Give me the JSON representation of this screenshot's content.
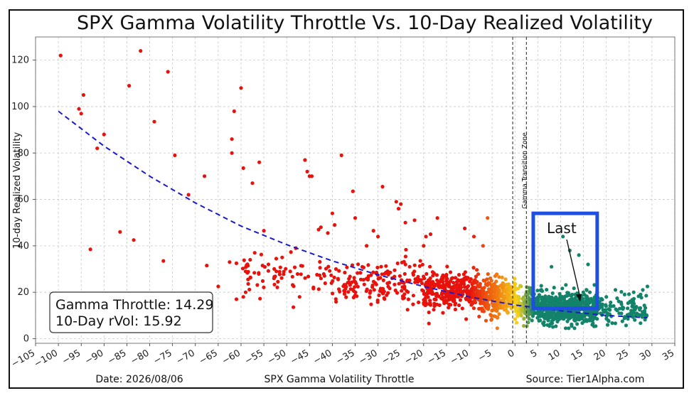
{
  "chart_data": {
    "type": "scatter",
    "title": "SPX Gamma Volatility Throttle Vs. 10-Day Realized Volatility",
    "xlabel": "SPX Gamma Volatility Throttle",
    "ylabel": "10-day Realized Volatility",
    "xlim": [
      -105,
      35
    ],
    "ylim": [
      -2,
      130
    ],
    "x_ticks": [
      -105,
      -100,
      -95,
      -90,
      -85,
      -80,
      -75,
      -70,
      -65,
      -60,
      -55,
      -50,
      -45,
      -40,
      -35,
      -30,
      -25,
      -20,
      -15,
      -10,
      -5,
      0,
      5,
      10,
      15,
      20,
      25,
      30,
      35
    ],
    "y_ticks": [
      0,
      20,
      40,
      60,
      80,
      100,
      120
    ],
    "grid": true,
    "date_label": "Date: 2026/08/06",
    "source_label": "Source: Tier1Alpha.com",
    "zone_label": "Gamma Transition Zone",
    "zone_lines_x": [
      -0.5,
      2.5
    ],
    "stats": {
      "throttle_text": "Gamma Throttle: 14.29",
      "rvol_text": "10-Day rVol: 15.92",
      "throttle_value": 14.29,
      "rvol_value": 15.92
    },
    "last_label": "Last",
    "highlight_box": {
      "x_range": [
        4,
        18
      ],
      "y_range": [
        13,
        54
      ]
    },
    "fit_curve": {
      "style": "dashed",
      "color": "#1a1acc",
      "points": [
        [
          -100,
          98
        ],
        [
          -90,
          83
        ],
        [
          -80,
          70
        ],
        [
          -70,
          58.5
        ],
        [
          -60,
          48.5
        ],
        [
          -50,
          40.5
        ],
        [
          -40,
          33.5
        ],
        [
          -30,
          27.5
        ],
        [
          -20,
          22.5
        ],
        [
          -10,
          18
        ],
        [
          0,
          14.5
        ],
        [
          10,
          12
        ],
        [
          20,
          10
        ],
        [
          29,
          9
        ]
      ]
    },
    "color_scale": {
      "red": "#e8120c",
      "orange": "#f07a10",
      "yellow": "#f5d21c",
      "green": "#13836a"
    },
    "outliers": [
      [
        -99.5,
        122
      ],
      [
        -94.5,
        105
      ],
      [
        -95.5,
        99
      ],
      [
        -95,
        97
      ],
      [
        -93,
        38.5
      ],
      [
        -90,
        88
      ],
      [
        -91.5,
        82
      ],
      [
        -86.5,
        46
      ],
      [
        -84.5,
        109
      ],
      [
        -83.5,
        42.5
      ],
      [
        -82,
        124
      ],
      [
        -79,
        93.5
      ],
      [
        -77,
        33.5
      ],
      [
        -76,
        115
      ],
      [
        -74.5,
        79
      ],
      [
        -71.5,
        62
      ],
      [
        -68,
        70
      ],
      [
        -67.5,
        31.5
      ],
      [
        -65,
        22.5
      ],
      [
        -62.5,
        33
      ],
      [
        -62,
        86
      ],
      [
        -61.5,
        98
      ],
      [
        -62,
        80
      ],
      [
        -61,
        17
      ],
      [
        -61,
        32.5
      ],
      [
        -60,
        108
      ],
      [
        -59.5,
        73.5
      ],
      [
        -59.5,
        18
      ],
      [
        -59,
        20
      ],
      [
        -59,
        29
      ],
      [
        -58,
        34
      ],
      [
        -57.5,
        67
      ],
      [
        -57,
        37
      ],
      [
        -56,
        76
      ],
      [
        -55,
        46.5
      ],
      [
        -54,
        32
      ],
      [
        -51,
        35
      ],
      [
        -48,
        39
      ],
      [
        -46,
        77
      ],
      [
        -45.5,
        72
      ],
      [
        -45,
        70
      ],
      [
        -44.5,
        70
      ],
      [
        -43,
        47
      ],
      [
        -42.5,
        48
      ],
      [
        -41,
        45.5
      ],
      [
        -40,
        54
      ],
      [
        -39.5,
        49
      ],
      [
        -38,
        79
      ],
      [
        -35.5,
        63.5
      ],
      [
        -35,
        52
      ],
      [
        -32.5,
        40
      ],
      [
        -31,
        46.5
      ],
      [
        -30,
        44
      ],
      [
        -29,
        65.5
      ],
      [
        -26,
        59
      ],
      [
        -25.5,
        56
      ],
      [
        -25,
        58
      ],
      [
        -24,
        50
      ],
      [
        -22,
        51
      ],
      [
        -20,
        40
      ],
      [
        -19.5,
        44
      ],
      [
        -18.5,
        45
      ],
      [
        -17,
        52
      ],
      [
        -11,
        47.5
      ],
      [
        -9,
        44
      ],
      [
        -6,
        52
      ],
      [
        -7,
        40
      ]
    ],
    "clusters": [
      {
        "x_range": [
          -60,
          -40
        ],
        "y_center": 27,
        "y_spread": 8,
        "n": 70
      },
      {
        "x_range": [
          -40,
          -20
        ],
        "y_center": 24,
        "y_spread": 8,
        "n": 160
      },
      {
        "x_range": [
          -20,
          -8
        ],
        "y_center": 21,
        "y_spread": 7,
        "n": 300
      },
      {
        "x_range": [
          -8,
          0
        ],
        "y_center": 18,
        "y_spread": 7,
        "n": 280
      },
      {
        "x_range": [
          0,
          5
        ],
        "y_center": 15,
        "y_spread": 6,
        "n": 180
      },
      {
        "x_range": [
          5,
          18
        ],
        "y_center": 13,
        "y_spread": 6,
        "n": 650
      },
      {
        "x_range": [
          18,
          29
        ],
        "y_center": 12,
        "y_spread": 5,
        "n": 110
      }
    ],
    "green_outliers": [
      [
        10.5,
        44
      ],
      [
        12,
        38
      ],
      [
        14,
        36
      ],
      [
        16,
        32
      ],
      [
        8,
        31
      ],
      [
        20,
        18
      ],
      [
        22,
        21
      ],
      [
        24,
        19
      ],
      [
        26,
        20
      ],
      [
        28,
        21
      ],
      [
        29,
        22.5
      ],
      [
        18,
        20
      ]
    ]
  }
}
